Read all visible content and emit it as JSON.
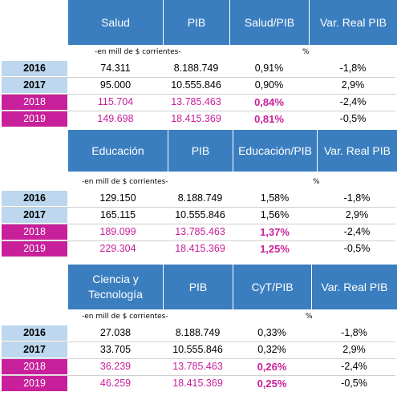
{
  "tables": [
    {
      "headers": [
        "Salud",
        "PIB",
        "Salud/PIB",
        "Var. Real PIB"
      ],
      "unit_note": "-en mill de $ corrientes-",
      "pct_note": "%",
      "rows": [
        {
          "year": "2016",
          "value": "74.311",
          "pib": "8.188.749",
          "ratio": "0,91%",
          "var": "-1,8%"
        },
        {
          "year": "2017",
          "value": "95.000",
          "pib": "10.555.846",
          "ratio": "0,90%",
          "var": "2,9%"
        },
        {
          "year": "2018",
          "value": "115.704",
          "pib": "13.785.463",
          "ratio": "0,84%",
          "var": "-2,4%"
        },
        {
          "year": "2019",
          "value": "149.698",
          "pib": "18.415.369",
          "ratio": "0,81%",
          "var": "-0,5%"
        }
      ]
    },
    {
      "headers": [
        "Educación",
        "PIB",
        "Educación/PIB",
        "Var. Real PIB"
      ],
      "unit_note": "-en mill de $ corrientes-",
      "pct_note": "%",
      "rows": [
        {
          "year": "2016",
          "value": "129.150",
          "pib": "8.188.749",
          "ratio": "1,58%",
          "var": "-1,8%"
        },
        {
          "year": "2017",
          "value": "165.115",
          "pib": "10.555.846",
          "ratio": "1,56%",
          "var": "2,9%"
        },
        {
          "year": "2018",
          "value": "189.099",
          "pib": "13.785.463",
          "ratio": "1,37%",
          "var": "-2,4%"
        },
        {
          "year": "2019",
          "value": "229.304",
          "pib": "18.415.369",
          "ratio": "1,25%",
          "var": "-0,5%"
        }
      ]
    },
    {
      "headers": [
        "Ciencia y Tecnología",
        "PIB",
        "CyT/PIB",
        "Var. Real PIB"
      ],
      "unit_note": "-en mill de $ corrientes-",
      "pct_note": "%",
      "rows": [
        {
          "year": "2016",
          "value": "27.038",
          "pib": "8.188.749",
          "ratio": "0,33%",
          "var": "-1,8%"
        },
        {
          "year": "2017",
          "value": "33.705",
          "pib": "10.555.846",
          "ratio": "0,32%",
          "var": "2,9%"
        },
        {
          "year": "2018",
          "value": "36.239",
          "pib": "13.785.463",
          "ratio": "0,26%",
          "var": "-2,4%"
        },
        {
          "year": "2019",
          "value": "46.259",
          "pib": "18.415.369",
          "ratio": "0,25%",
          "var": "-0,5%"
        }
      ]
    }
  ],
  "colors": {
    "header_blue": "#3a7ebf",
    "magenta": "#c8209a",
    "year_blue": "#bcd7ee"
  }
}
